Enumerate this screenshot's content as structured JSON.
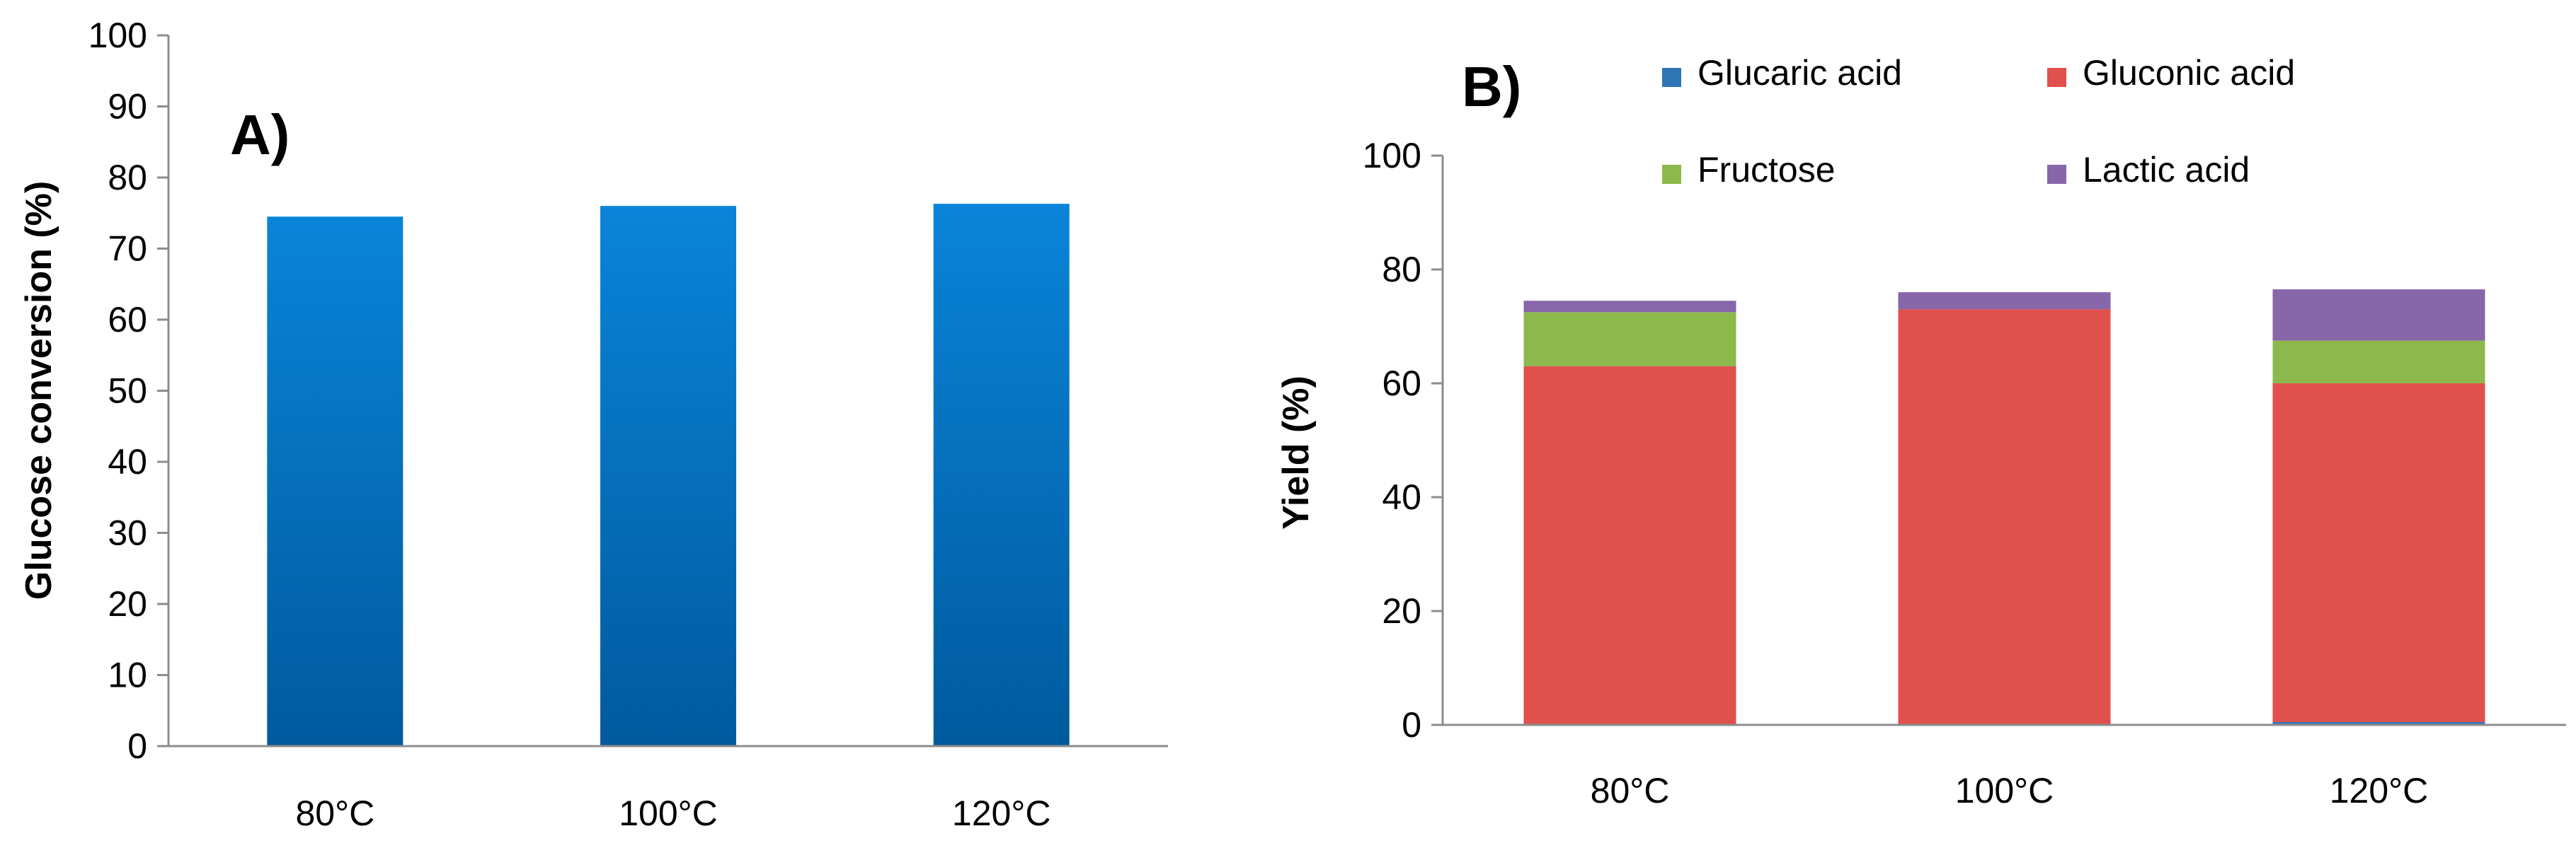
{
  "chart_data": [
    {
      "type": "bar",
      "panel_label": "A)",
      "ylabel": "Glucose conversion (%)",
      "xlabel": "",
      "ylim": [
        0,
        100
      ],
      "yticks": [
        "0",
        "10",
        "20",
        "30",
        "40",
        "50",
        "60",
        "70",
        "80",
        "90",
        "100"
      ],
      "categories": [
        "80°C",
        "100°C",
        "120°C"
      ],
      "values": [
        74.5,
        76,
        76.3
      ],
      "color": "#0070c0",
      "grid": false,
      "legend": "none"
    },
    {
      "type": "bar",
      "stacked": true,
      "panel_label": "B)",
      "ylabel": "Yield (%)",
      "xlabel": "",
      "ylim": [
        0,
        100
      ],
      "yticks": [
        "0",
        "20",
        "40",
        "60",
        "80",
        "100"
      ],
      "categories": [
        "80°C",
        "100°C",
        "120°C"
      ],
      "series": [
        {
          "name": "Glucaric acid",
          "color": "#2e75b6",
          "values": [
            0,
            0,
            0.5
          ]
        },
        {
          "name": "Gluconic acid",
          "color": "#e0504d",
          "values": [
            63,
            73,
            59.5
          ]
        },
        {
          "name": "Fructose",
          "color": "#8db84c",
          "values": [
            9.5,
            0,
            7.5
          ]
        },
        {
          "name": "Lactic acid",
          "color": "#8866aa",
          "values": [
            2,
            3,
            9
          ]
        }
      ],
      "grid": false,
      "legend": "top"
    }
  ]
}
